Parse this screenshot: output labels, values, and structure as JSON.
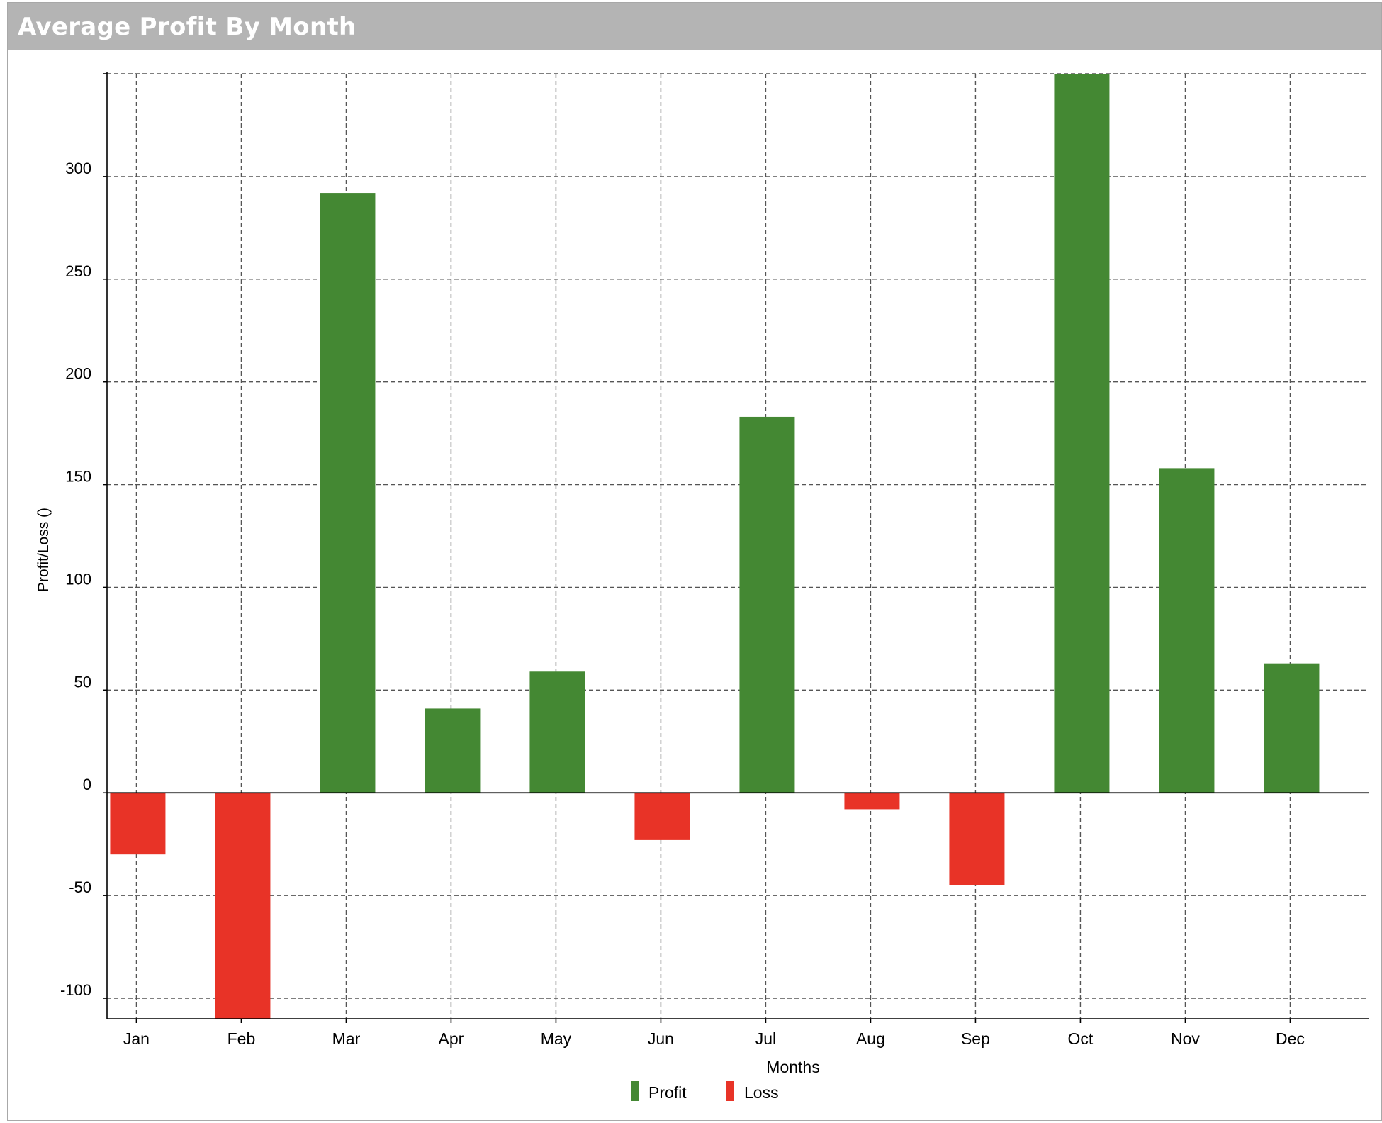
{
  "window": {
    "title": "Average Profit By Month"
  },
  "chart_data": {
    "type": "bar",
    "categories": [
      "Jan",
      "Feb",
      "Mar",
      "Apr",
      "May",
      "Jun",
      "Jul",
      "Aug",
      "Sep",
      "Oct",
      "Nov",
      "Dec"
    ],
    "values": [
      -30,
      -110,
      292,
      41,
      59,
      -23,
      183,
      -8,
      -45,
      350,
      158,
      63
    ],
    "series": [
      {
        "name": "Profit",
        "color": "#448833"
      },
      {
        "name": "Loss",
        "color": "#e83327"
      }
    ],
    "xlabel": "Months",
    "ylabel": "Profit/Loss ()",
    "ylim": [
      -110,
      350
    ],
    "yticks": [
      -100,
      -50,
      0,
      50,
      100,
      150,
      200,
      250,
      300
    ],
    "ytick_labels": [
      "-100",
      "-50",
      "0",
      "50",
      "100",
      "150",
      "200",
      "250",
      "300"
    ],
    "grid": true,
    "legend_position": "bottom-center"
  }
}
